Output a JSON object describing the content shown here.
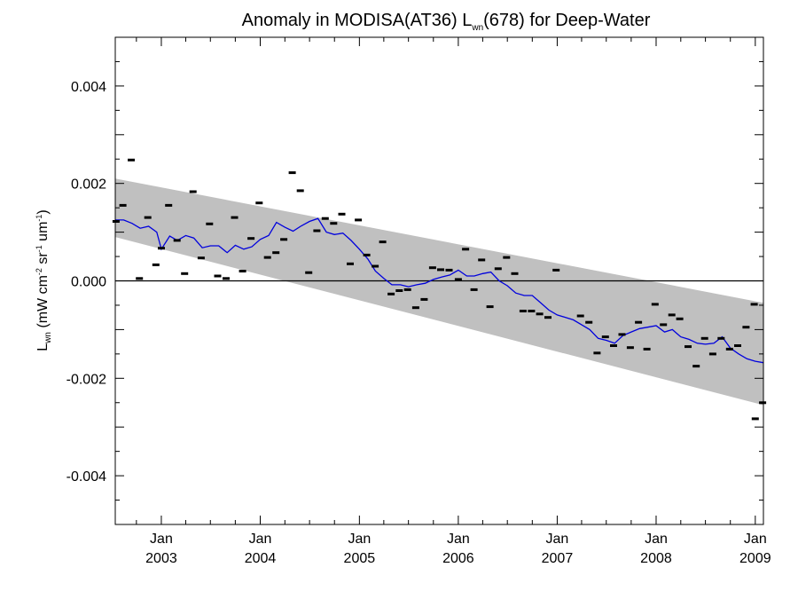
{
  "chart_data": {
    "type": "scatter",
    "title": {
      "main": "Anomaly in MODISA(AT36) L",
      "sub": "wn",
      "tail": "(678) for Deep-Water"
    },
    "ylabel": {
      "main": "L",
      "sub": "wn",
      "units": [
        " (mW cm",
        "-2",
        " sr",
        "-1",
        " um",
        "-1",
        ")"
      ]
    },
    "x_range": [
      "2002-07-15",
      "2009-01-31"
    ],
    "y_range": [
      -0.005,
      0.005
    ],
    "y_ticks": [
      {
        "value": 0.004,
        "label": "0.004"
      },
      {
        "value": 0.002,
        "label": "0.002"
      },
      {
        "value": 0.0,
        "label": "0.000"
      },
      {
        "value": -0.002,
        "label": "-0.002"
      },
      {
        "value": -0.004,
        "label": "-0.004"
      }
    ],
    "x_ticks": [
      {
        "date": "2003-01-01",
        "month": "Jan",
        "year": "2003"
      },
      {
        "date": "2004-01-01",
        "month": "Jan",
        "year": "2004"
      },
      {
        "date": "2005-01-01",
        "month": "Jan",
        "year": "2005"
      },
      {
        "date": "2006-01-01",
        "month": "Jan",
        "year": "2006"
      },
      {
        "date": "2007-01-01",
        "month": "Jan",
        "year": "2007"
      },
      {
        "date": "2008-01-01",
        "month": "Jan",
        "year": "2008"
      },
      {
        "date": "2009-01-01",
        "month": "Jan",
        "year": "2009"
      }
    ],
    "zero_line": 0.0,
    "band": {
      "start_date": "2002-07-15",
      "start_upper": 0.0021,
      "start_lower": 0.0009,
      "end_date": "2009-01-31",
      "end_upper": -0.00045,
      "end_lower": -0.00255,
      "color": "#c0c0c0"
    },
    "points": [
      {
        "date": "2002-07-18",
        "y": 0.00122
      },
      {
        "date": "2002-08-12",
        "y": 0.00155
      },
      {
        "date": "2002-09-12",
        "y": 0.00248
      },
      {
        "date": "2002-10-12",
        "y": 5e-05
      },
      {
        "date": "2002-11-12",
        "y": 0.0013
      },
      {
        "date": "2002-12-12",
        "y": 0.00033
      },
      {
        "date": "2003-01-01",
        "y": 0.00067
      },
      {
        "date": "2003-01-28",
        "y": 0.00155
      },
      {
        "date": "2003-02-28",
        "y": 0.00083
      },
      {
        "date": "2003-03-28",
        "y": 0.00015
      },
      {
        "date": "2003-04-28",
        "y": 0.00183
      },
      {
        "date": "2003-05-28",
        "y": 0.00047
      },
      {
        "date": "2003-06-28",
        "y": 0.00117
      },
      {
        "date": "2003-07-28",
        "y": 0.0001
      },
      {
        "date": "2003-08-28",
        "y": 5e-05
      },
      {
        "date": "2003-09-28",
        "y": 0.0013
      },
      {
        "date": "2003-10-28",
        "y": 0.0002
      },
      {
        "date": "2003-11-28",
        "y": 0.00087
      },
      {
        "date": "2003-12-28",
        "y": 0.0016
      },
      {
        "date": "2004-01-28",
        "y": 0.00048
      },
      {
        "date": "2004-02-28",
        "y": 0.00058
      },
      {
        "date": "2004-03-28",
        "y": 0.00085
      },
      {
        "date": "2004-04-28",
        "y": 0.00222
      },
      {
        "date": "2004-05-28",
        "y": 0.00185
      },
      {
        "date": "2004-06-28",
        "y": 0.00017
      },
      {
        "date": "2004-07-28",
        "y": 0.00103
      },
      {
        "date": "2004-08-28",
        "y": 0.00128
      },
      {
        "date": "2004-09-28",
        "y": 0.00118
      },
      {
        "date": "2004-10-28",
        "y": 0.00137
      },
      {
        "date": "2004-11-28",
        "y": 0.00035
      },
      {
        "date": "2004-12-28",
        "y": 0.00125
      },
      {
        "date": "2005-01-28",
        "y": 0.00053
      },
      {
        "date": "2005-02-28",
        "y": 0.0003
      },
      {
        "date": "2005-03-28",
        "y": 0.0008
      },
      {
        "date": "2005-04-28",
        "y": -0.00027
      },
      {
        "date": "2005-05-28",
        "y": -0.0002
      },
      {
        "date": "2005-06-28",
        "y": -0.00018
      },
      {
        "date": "2005-07-28",
        "y": -0.00055
      },
      {
        "date": "2005-08-28",
        "y": -0.00038
      },
      {
        "date": "2005-09-28",
        "y": 0.00027
      },
      {
        "date": "2005-10-28",
        "y": 0.00023
      },
      {
        "date": "2005-11-28",
        "y": 0.00022
      },
      {
        "date": "2006-01-01",
        "y": 3e-05
      },
      {
        "date": "2006-01-28",
        "y": 0.00065
      },
      {
        "date": "2006-02-28",
        "y": -0.00018
      },
      {
        "date": "2006-03-28",
        "y": 0.00043
      },
      {
        "date": "2006-04-28",
        "y": -0.00053
      },
      {
        "date": "2006-05-28",
        "y": 0.00025
      },
      {
        "date": "2006-06-28",
        "y": 0.00048
      },
      {
        "date": "2006-07-28",
        "y": 0.00015
      },
      {
        "date": "2006-08-28",
        "y": -0.00062
      },
      {
        "date": "2006-09-28",
        "y": -0.00062
      },
      {
        "date": "2006-10-28",
        "y": -0.00068
      },
      {
        "date": "2006-11-28",
        "y": -0.00075
      },
      {
        "date": "2006-12-28",
        "y": 0.00022
      },
      {
        "date": "2007-03-28",
        "y": -0.00072
      },
      {
        "date": "2007-04-28",
        "y": -0.00085
      },
      {
        "date": "2007-05-28",
        "y": -0.00148
      },
      {
        "date": "2007-06-28",
        "y": -0.00115
      },
      {
        "date": "2007-07-28",
        "y": -0.00133
      },
      {
        "date": "2007-08-28",
        "y": -0.0011
      },
      {
        "date": "2007-09-28",
        "y": -0.00137
      },
      {
        "date": "2007-10-28",
        "y": -0.00085
      },
      {
        "date": "2007-11-28",
        "y": -0.0014
      },
      {
        "date": "2007-12-28",
        "y": -0.00048
      },
      {
        "date": "2008-01-28",
        "y": -0.0009
      },
      {
        "date": "2008-02-28",
        "y": -0.0007
      },
      {
        "date": "2008-03-28",
        "y": -0.00078
      },
      {
        "date": "2008-04-28",
        "y": -0.00135
      },
      {
        "date": "2008-05-28",
        "y": -0.00175
      },
      {
        "date": "2008-06-28",
        "y": -0.00118
      },
      {
        "date": "2008-07-28",
        "y": -0.0015
      },
      {
        "date": "2008-08-28",
        "y": -0.00118
      },
      {
        "date": "2008-09-28",
        "y": -0.0014
      },
      {
        "date": "2008-10-28",
        "y": -0.00133
      },
      {
        "date": "2008-11-28",
        "y": -0.00095
      },
      {
        "date": "2008-12-28",
        "y": -0.00048
      },
      {
        "date": "2009-01-01",
        "y": -0.00283
      },
      {
        "date": "2009-01-28",
        "y": -0.0025
      }
    ],
    "series": [
      {
        "color": "#0000dd",
        "points": [
          {
            "date": "2002-07-15",
            "y": 0.00125
          },
          {
            "date": "2002-08-15",
            "y": 0.00125
          },
          {
            "date": "2002-09-15",
            "y": 0.00118
          },
          {
            "date": "2002-10-15",
            "y": 0.00108
          },
          {
            "date": "2002-11-15",
            "y": 0.00112
          },
          {
            "date": "2002-12-15",
            "y": 0.001
          },
          {
            "date": "2003-01-01",
            "y": 0.00065
          },
          {
            "date": "2003-02-01",
            "y": 0.00092
          },
          {
            "date": "2003-03-01",
            "y": 0.00083
          },
          {
            "date": "2003-04-01",
            "y": 0.00093
          },
          {
            "date": "2003-05-01",
            "y": 0.00088
          },
          {
            "date": "2003-06-01",
            "y": 0.00068
          },
          {
            "date": "2003-07-01",
            "y": 0.00072
          },
          {
            "date": "2003-08-01",
            "y": 0.00072
          },
          {
            "date": "2003-09-01",
            "y": 0.00058
          },
          {
            "date": "2003-10-01",
            "y": 0.00073
          },
          {
            "date": "2003-11-01",
            "y": 0.00065
          },
          {
            "date": "2003-12-01",
            "y": 0.0007
          },
          {
            "date": "2004-01-01",
            "y": 0.00085
          },
          {
            "date": "2004-02-01",
            "y": 0.00093
          },
          {
            "date": "2004-03-01",
            "y": 0.0012
          },
          {
            "date": "2004-04-01",
            "y": 0.0011
          },
          {
            "date": "2004-05-01",
            "y": 0.00102
          },
          {
            "date": "2004-06-01",
            "y": 0.00113
          },
          {
            "date": "2004-07-01",
            "y": 0.00122
          },
          {
            "date": "2004-08-01",
            "y": 0.00128
          },
          {
            "date": "2004-09-01",
            "y": 0.001
          },
          {
            "date": "2004-10-01",
            "y": 0.00095
          },
          {
            "date": "2004-11-01",
            "y": 0.00098
          },
          {
            "date": "2004-12-01",
            "y": 0.00083
          },
          {
            "date": "2005-01-01",
            "y": 0.00065
          },
          {
            "date": "2005-02-01",
            "y": 0.00045
          },
          {
            "date": "2005-03-01",
            "y": 0.0002
          },
          {
            "date": "2005-04-01",
            "y": 5e-05
          },
          {
            "date": "2005-05-01",
            "y": -8e-05
          },
          {
            "date": "2005-06-01",
            "y": -8e-05
          },
          {
            "date": "2005-07-01",
            "y": -0.00012
          },
          {
            "date": "2005-08-01",
            "y": -8e-05
          },
          {
            "date": "2005-09-01",
            "y": -5e-05
          },
          {
            "date": "2005-10-01",
            "y": 3e-05
          },
          {
            "date": "2005-11-01",
            "y": 8e-05
          },
          {
            "date": "2005-12-01",
            "y": 0.00012
          },
          {
            "date": "2006-01-01",
            "y": 0.00022
          },
          {
            "date": "2006-02-01",
            "y": 0.0001
          },
          {
            "date": "2006-03-01",
            "y": 0.0001
          },
          {
            "date": "2006-04-01",
            "y": 0.00015
          },
          {
            "date": "2006-05-01",
            "y": 0.00018
          },
          {
            "date": "2006-06-01",
            "y": 0.0
          },
          {
            "date": "2006-07-01",
            "y": -0.0001
          },
          {
            "date": "2006-08-01",
            "y": -0.00025
          },
          {
            "date": "2006-09-01",
            "y": -0.0003
          },
          {
            "date": "2006-10-01",
            "y": -0.0003
          },
          {
            "date": "2006-11-01",
            "y": -0.00045
          },
          {
            "date": "2006-12-01",
            "y": -0.0006
          },
          {
            "date": "2007-01-01",
            "y": -0.0007
          },
          {
            "date": "2007-02-01",
            "y": -0.00075
          },
          {
            "date": "2007-03-01",
            "y": -0.0008
          },
          {
            "date": "2007-04-01",
            "y": -0.0009
          },
          {
            "date": "2007-05-01",
            "y": -0.001
          },
          {
            "date": "2007-06-01",
            "y": -0.00118
          },
          {
            "date": "2007-07-01",
            "y": -0.00122
          },
          {
            "date": "2007-08-01",
            "y": -0.00128
          },
          {
            "date": "2007-09-01",
            "y": -0.00112
          },
          {
            "date": "2007-10-01",
            "y": -0.00105
          },
          {
            "date": "2007-11-01",
            "y": -0.00098
          },
          {
            "date": "2007-12-01",
            "y": -0.00095
          },
          {
            "date": "2008-01-01",
            "y": -0.00092
          },
          {
            "date": "2008-02-01",
            "y": -0.00105
          },
          {
            "date": "2008-03-01",
            "y": -0.001
          },
          {
            "date": "2008-04-01",
            "y": -0.00115
          },
          {
            "date": "2008-05-01",
            "y": -0.0012
          },
          {
            "date": "2008-06-01",
            "y": -0.00128
          },
          {
            "date": "2008-07-01",
            "y": -0.0013
          },
          {
            "date": "2008-08-01",
            "y": -0.00128
          },
          {
            "date": "2008-09-01",
            "y": -0.00115
          },
          {
            "date": "2008-10-01",
            "y": -0.00138
          },
          {
            "date": "2008-11-01",
            "y": -0.0015
          },
          {
            "date": "2008-12-01",
            "y": -0.0016
          },
          {
            "date": "2009-01-01",
            "y": -0.00165
          },
          {
            "date": "2009-01-31",
            "y": -0.00168
          }
        ]
      }
    ],
    "grid": false,
    "legend": "none"
  }
}
